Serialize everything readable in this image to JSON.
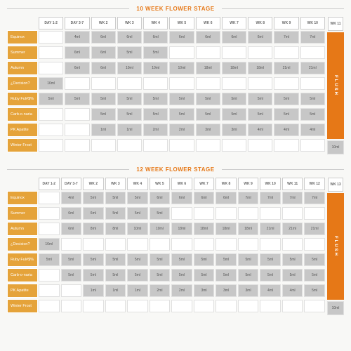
{
  "colors": {
    "accent": "#e67817",
    "rowLabel": "#e5a33a",
    "cellFilled": "#c7c7c7",
    "border": "#ccc",
    "bg": "#f8f8f6"
  },
  "schedules": [
    {
      "title": "10 WEEK FLOWER STAGE",
      "flush": "FLUSH",
      "columns": [
        "DAY 1-2",
        "DAY 3-7",
        "WK 2",
        "WK 3",
        "WK 4",
        "WK 5",
        "WK 6",
        "WK 7",
        "WK 8",
        "WK 9",
        "WK 10",
        "WK 11"
      ],
      "rows": [
        {
          "label": "Equinox",
          "cells": [
            "",
            "4ml",
            "6ml",
            "6ml",
            "6ml",
            "6ml",
            "6ml",
            "6ml",
            "6ml",
            "7ml",
            "7ml",
            ""
          ]
        },
        {
          "label": "Summer",
          "cells": [
            "",
            "6ml",
            "6ml",
            "5ml",
            "5ml",
            "",
            "",
            "",
            "",
            "",
            "",
            ""
          ]
        },
        {
          "label": "Autumn",
          "cells": [
            "",
            "6ml",
            "6ml",
            "10ml",
            "10ml",
            "10ml",
            "18ml",
            "18ml",
            "18ml",
            "21ml",
            "21ml",
            ""
          ]
        },
        {
          "label": "¿Decision?",
          "cells": [
            "16ml",
            "",
            "",
            "",
            "",
            "",
            "",
            "",
            "",
            "",
            "",
            ""
          ]
        },
        {
          "label": "Ruby Ful#$%",
          "cells": [
            "5ml",
            "5ml",
            "5ml",
            "5ml",
            "5ml",
            "5ml",
            "5ml",
            "5ml",
            "5ml",
            "5ml",
            "5ml",
            ""
          ]
        },
        {
          "label": "Carb-o-naria",
          "cells": [
            "",
            "",
            "5ml",
            "5ml",
            "5ml",
            "5ml",
            "5ml",
            "5ml",
            "5ml",
            "5ml",
            "5ml",
            "5ml"
          ]
        },
        {
          "label": "PK Apatite",
          "cells": [
            "",
            "",
            "1ml",
            "1ml",
            "2ml",
            "2ml",
            "3ml",
            "3ml",
            "4ml",
            "4ml",
            "4ml",
            ""
          ]
        },
        {
          "label": "Winter Frost",
          "cells": [
            "",
            "",
            "",
            "",
            "",
            "",
            "",
            "",
            "",
            "",
            "",
            "10ml"
          ]
        }
      ]
    },
    {
      "title": "12 WEEK FLOWER STAGE",
      "flush": "FLUSH",
      "columns": [
        "DAY 1-2",
        "DAY 3-7",
        "WK 2",
        "WK 3",
        "WK 4",
        "WK 5",
        "WK 6",
        "WK 7",
        "WK 8",
        "WK 9",
        "WK 10",
        "WK 11",
        "WK 12",
        "WK 13"
      ],
      "rows": [
        {
          "label": "Equinox",
          "cells": [
            "",
            "4ml",
            "5ml",
            "5ml",
            "5ml",
            "6ml",
            "6ml",
            "6ml",
            "6ml",
            "7ml",
            "7ml",
            "7ml",
            "7ml",
            ""
          ]
        },
        {
          "label": "Summer",
          "cells": [
            "",
            "6ml",
            "6ml",
            "5ml",
            "5ml",
            "5ml",
            "",
            "",
            "",
            "",
            "",
            "",
            "",
            ""
          ]
        },
        {
          "label": "Autumn",
          "cells": [
            "",
            "6ml",
            "8ml",
            "8ml",
            "10ml",
            "10ml",
            "18ml",
            "18ml",
            "18ml",
            "18ml",
            "21ml",
            "21ml",
            "21ml",
            ""
          ]
        },
        {
          "label": "¿Decision?",
          "cells": [
            "16ml",
            "",
            "",
            "",
            "",
            "",
            "",
            "",
            "",
            "",
            "",
            "",
            "",
            ""
          ]
        },
        {
          "label": "Ruby Ful#$%",
          "cells": [
            "5ml",
            "5ml",
            "5ml",
            "5ml",
            "5ml",
            "5ml",
            "5ml",
            "5ml",
            "5ml",
            "5ml",
            "5ml",
            "5ml",
            "5ml",
            ""
          ]
        },
        {
          "label": "Carb-o-naria",
          "cells": [
            "",
            "5ml",
            "5ml",
            "5ml",
            "5ml",
            "5ml",
            "5ml",
            "5ml",
            "5ml",
            "5ml",
            "5ml",
            "5ml",
            "5ml",
            "5ml"
          ]
        },
        {
          "label": "PK Apatite",
          "cells": [
            "",
            "",
            "1ml",
            "1ml",
            "1ml",
            "2ml",
            "2ml",
            "3ml",
            "3ml",
            "3ml",
            "4ml",
            "4ml",
            "5ml",
            ""
          ]
        },
        {
          "label": "Winter Frost",
          "cells": [
            "",
            "",
            "",
            "",
            "",
            "",
            "",
            "",
            "",
            "",
            "",
            "",
            "",
            "10ml"
          ]
        }
      ]
    }
  ]
}
